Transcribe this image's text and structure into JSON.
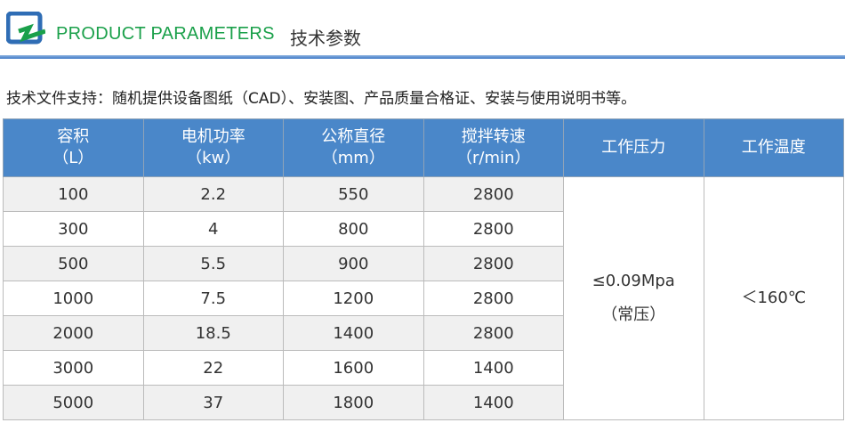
{
  "header": {
    "title_en": "PRODUCT PARAMETERS",
    "title_cn": "技术参数",
    "logo": "blue-square-green-z-logo"
  },
  "intro": "技术文件支持：随机提供设备图纸（CAD）、安装图、产品质量合格证、安装与使用说明书等。",
  "colors": {
    "header_bg": "#4a87c9",
    "title_green": "#1aa04a",
    "row_alt": "#f0f0f0"
  },
  "table": {
    "columns": [
      {
        "name": "容积",
        "unit": "（L）"
      },
      {
        "name": "电机功率",
        "unit": "（kw）"
      },
      {
        "name": "公称直径",
        "unit": "（mm）"
      },
      {
        "name": "搅拌转速",
        "unit": "（r/min）"
      },
      {
        "name": "工作压力",
        "unit": ""
      },
      {
        "name": "工作温度",
        "unit": ""
      }
    ],
    "rows": [
      [
        "100",
        "2.2",
        "550",
        "2800"
      ],
      [
        "300",
        "4",
        "800",
        "2800"
      ],
      [
        "500",
        "5.5",
        "900",
        "2800"
      ],
      [
        "1000",
        "7.5",
        "1200",
        "2800"
      ],
      [
        "2000",
        "18.5",
        "1400",
        "2800"
      ],
      [
        "3000",
        "22",
        "1600",
        "1400"
      ],
      [
        "5000",
        "37",
        "1800",
        "1400"
      ]
    ],
    "pressure": "≤0.09Mpa",
    "pressure_note": "（常压）",
    "temperature": "＜160℃"
  }
}
